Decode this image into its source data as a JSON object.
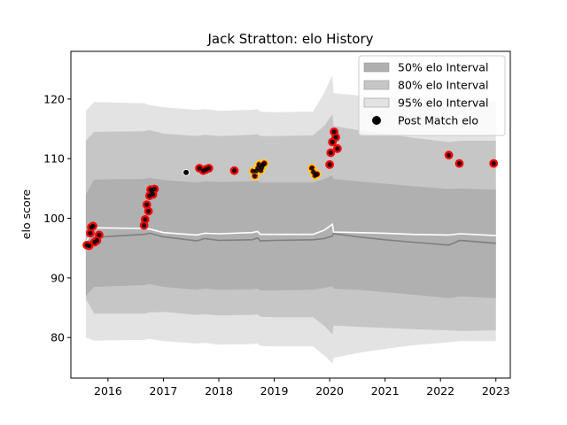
{
  "chart_data": {
    "type": "line",
    "title": "Jack Stratton: elo History",
    "xlabel": "",
    "ylabel": "elo score",
    "xlim": [
      2015.33,
      2023.26
    ],
    "ylim": [
      73.2,
      128.0
    ],
    "xticks": [
      2016,
      2017,
      2018,
      2019,
      2020,
      2021,
      2022,
      2023
    ],
    "yticks": [
      80,
      90,
      100,
      110,
      120
    ],
    "grid": false,
    "legend_position": "top-right",
    "legend": [
      {
        "label": "50% elo Interval",
        "kind": "patch",
        "color": "#b0b0b0"
      },
      {
        "label": "80% elo Interval",
        "kind": "patch",
        "color": "#c6c6c6"
      },
      {
        "label": "95% elo Interval",
        "kind": "patch",
        "color": "#e3e3e3"
      },
      {
        "label": "Post Match elo",
        "kind": "marker",
        "color": "#000000"
      }
    ],
    "x": [
      2015.6,
      2015.75,
      2016.65,
      2016.75,
      2017.0,
      2017.6,
      2017.75,
      2018.0,
      2018.6,
      2018.7,
      2018.75,
      2019.0,
      2019.7,
      2019.9,
      2020.05,
      2020.07,
      2020.5,
      2021.0,
      2021.5,
      2022.15,
      2022.35,
      2023.0
    ],
    "series": [
      {
        "values": [
          95.5,
          96.8,
          97.3,
          97.5,
          96.9,
          96.2,
          96.6,
          96.3,
          96.4,
          96.7,
          96.2,
          96.3,
          96.4,
          96.6,
          97.0,
          97.4,
          96.9,
          96.4,
          96.0,
          95.5,
          96.3,
          95.8
        ]
      },
      {
        "values": [
          96.0,
          98.4,
          98.3,
          98.2,
          97.6,
          97.2,
          97.5,
          97.4,
          97.6,
          97.8,
          97.3,
          97.3,
          97.3,
          98.0,
          99.0,
          97.7,
          97.6,
          97.5,
          97.3,
          97.2,
          97.4,
          97.1
        ]
      },
      {
        "values": [
          104,
          106.5,
          106.6,
          106.8,
          106.4,
          106.0,
          106.2,
          106.1,
          106.2,
          106.3,
          106.0,
          106.0,
          106.0,
          106.6,
          107.2,
          106.6,
          106.2,
          105.8,
          105.4,
          104.9,
          105.0,
          104.8
        ]
      },
      {
        "values": [
          87,
          88.5,
          88.8,
          89.0,
          88.5,
          88.0,
          88.2,
          88.0,
          88.1,
          88.2,
          87.9,
          87.9,
          88.0,
          88.3,
          88.6,
          88.2,
          88.0,
          87.6,
          87.2,
          86.6,
          86.9,
          86.6
        ]
      },
      {
        "values": [
          113,
          114.5,
          114.6,
          114.8,
          114.2,
          113.8,
          114.0,
          113.8,
          114.0,
          114.1,
          113.8,
          113.8,
          113.9,
          115.5,
          117.5,
          115.5,
          114.8,
          114.2,
          113.5,
          112.8,
          113.0,
          113.0
        ]
      },
      {
        "values": [
          86.5,
          84.0,
          84.0,
          84.2,
          84.3,
          83.8,
          83.9,
          83.7,
          83.8,
          83.9,
          83.5,
          83.4,
          83.4,
          82.0,
          80.5,
          82.0,
          81.8,
          81.6,
          81.4,
          81.2,
          81.1,
          81.2
        ]
      },
      {
        "values": [
          118,
          119.5,
          119.3,
          119.0,
          118.6,
          118.2,
          118.3,
          118.0,
          118.2,
          118.3,
          117.9,
          117.8,
          117.9,
          121.0,
          124.0,
          121.0,
          120.6,
          120.3,
          120.0,
          119.8,
          119.7,
          119.6
        ]
      },
      {
        "values": [
          80.0,
          79.5,
          79.6,
          79.8,
          79.4,
          79.0,
          79.1,
          78.8,
          78.9,
          79.0,
          78.6,
          78.5,
          78.5,
          77.0,
          75.7,
          76.6,
          77.4,
          78.1,
          78.7,
          79.2,
          79.4,
          79.4
        ]
      }
    ],
    "points": [
      {
        "x": 2015.62,
        "y": 95.5,
        "edge": "red"
      },
      {
        "x": 2015.66,
        "y": 95.4,
        "edge": "red"
      },
      {
        "x": 2015.68,
        "y": 97.5,
        "edge": "red"
      },
      {
        "x": 2015.7,
        "y": 98.5,
        "edge": "red"
      },
      {
        "x": 2015.73,
        "y": 98.7,
        "edge": "red"
      },
      {
        "x": 2015.76,
        "y": 96.0,
        "edge": "red"
      },
      {
        "x": 2015.8,
        "y": 96.3,
        "edge": "red"
      },
      {
        "x": 2015.84,
        "y": 97.2,
        "edge": "red"
      },
      {
        "x": 2016.65,
        "y": 98.8,
        "edge": "red"
      },
      {
        "x": 2016.67,
        "y": 99.8,
        "edge": "red"
      },
      {
        "x": 2016.7,
        "y": 102.3,
        "edge": "red"
      },
      {
        "x": 2016.73,
        "y": 101.2,
        "edge": "red"
      },
      {
        "x": 2016.75,
        "y": 103.8,
        "edge": "red"
      },
      {
        "x": 2016.77,
        "y": 104.8,
        "edge": "red"
      },
      {
        "x": 2016.79,
        "y": 104.5,
        "edge": "red"
      },
      {
        "x": 2016.81,
        "y": 104.0,
        "edge": "red"
      },
      {
        "x": 2016.84,
        "y": 104.9,
        "edge": "red"
      },
      {
        "x": 2017.41,
        "y": 107.7,
        "edge": "none"
      },
      {
        "x": 2017.65,
        "y": 108.4,
        "edge": "red"
      },
      {
        "x": 2017.72,
        "y": 108.0,
        "edge": "red"
      },
      {
        "x": 2017.77,
        "y": 108.2,
        "edge": "red"
      },
      {
        "x": 2017.82,
        "y": 108.4,
        "edge": "red"
      },
      {
        "x": 2018.28,
        "y": 108.0,
        "edge": "red"
      },
      {
        "x": 2018.62,
        "y": 107.9,
        "edge": "yellow"
      },
      {
        "x": 2018.65,
        "y": 107.1,
        "edge": "yellow"
      },
      {
        "x": 2018.68,
        "y": 108.0,
        "edge": "yellow"
      },
      {
        "x": 2018.71,
        "y": 108.5,
        "edge": "yellow"
      },
      {
        "x": 2018.73,
        "y": 109.0,
        "edge": "yellow"
      },
      {
        "x": 2018.76,
        "y": 108.1,
        "edge": "yellow"
      },
      {
        "x": 2018.78,
        "y": 108.6,
        "edge": "yellow"
      },
      {
        "x": 2018.8,
        "y": 109.0,
        "edge": "yellow"
      },
      {
        "x": 2018.82,
        "y": 109.2,
        "edge": "yellow"
      },
      {
        "x": 2019.68,
        "y": 108.4,
        "edge": "yellow"
      },
      {
        "x": 2019.71,
        "y": 107.7,
        "edge": "yellow"
      },
      {
        "x": 2019.74,
        "y": 107.2,
        "edge": "yellow"
      },
      {
        "x": 2019.77,
        "y": 107.4,
        "edge": "yellow"
      },
      {
        "x": 2020.0,
        "y": 109.0,
        "edge": "red"
      },
      {
        "x": 2020.02,
        "y": 111.0,
        "edge": "red"
      },
      {
        "x": 2020.05,
        "y": 112.8,
        "edge": "red"
      },
      {
        "x": 2020.08,
        "y": 114.5,
        "edge": "red"
      },
      {
        "x": 2020.11,
        "y": 113.6,
        "edge": "red"
      },
      {
        "x": 2020.14,
        "y": 111.7,
        "edge": "red"
      },
      {
        "x": 2022.15,
        "y": 110.6,
        "edge": "red"
      },
      {
        "x": 2022.34,
        "y": 109.2,
        "edge": "red"
      },
      {
        "x": 2022.96,
        "y": 109.2,
        "edge": "red"
      }
    ]
  }
}
